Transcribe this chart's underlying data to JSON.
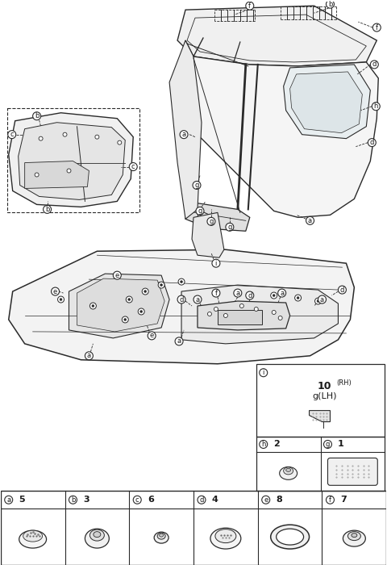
{
  "bg_color": "#ffffff",
  "line_color": "#2a2a2a",
  "text_color": "#1a1a1a",
  "parts_table": [
    {
      "label": "a",
      "qty": "5"
    },
    {
      "label": "b",
      "qty": "3"
    },
    {
      "label": "c",
      "qty": "6"
    },
    {
      "label": "d",
      "qty": "4"
    },
    {
      "label": "e",
      "qty": "8"
    },
    {
      "label": "f",
      "qty": "7"
    }
  ],
  "fig_width": 4.8,
  "fig_height": 7.0,
  "dpi": 100
}
